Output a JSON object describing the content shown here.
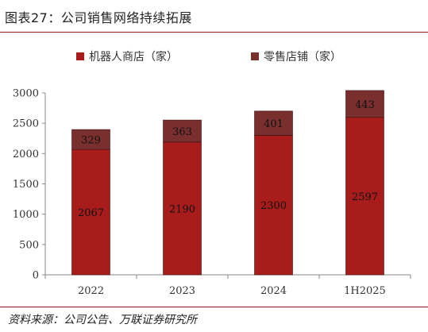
{
  "figure_title": "图表27：公司销售网络持续拓展",
  "source_note": "资料来源：公司公告、万联证券研究所",
  "chart_data": {
    "type": "bar",
    "stacked": true,
    "categories": [
      "2022",
      "2023",
      "2024",
      "1H2025"
    ],
    "series": [
      {
        "name": "机器人商店（家）",
        "values": [
          2067,
          2190,
          2300,
          2597
        ],
        "color": "#a81c1c"
      },
      {
        "name": "零售店铺（家）",
        "values": [
          329,
          363,
          401,
          443
        ],
        "color": "#7a2f2f"
      }
    ],
    "ylim": [
      0,
      3000
    ],
    "yticks": [
      0,
      500,
      1000,
      1500,
      2000,
      2500,
      3000
    ],
    "legend_position": "top",
    "grid": false,
    "data_labels": true
  }
}
